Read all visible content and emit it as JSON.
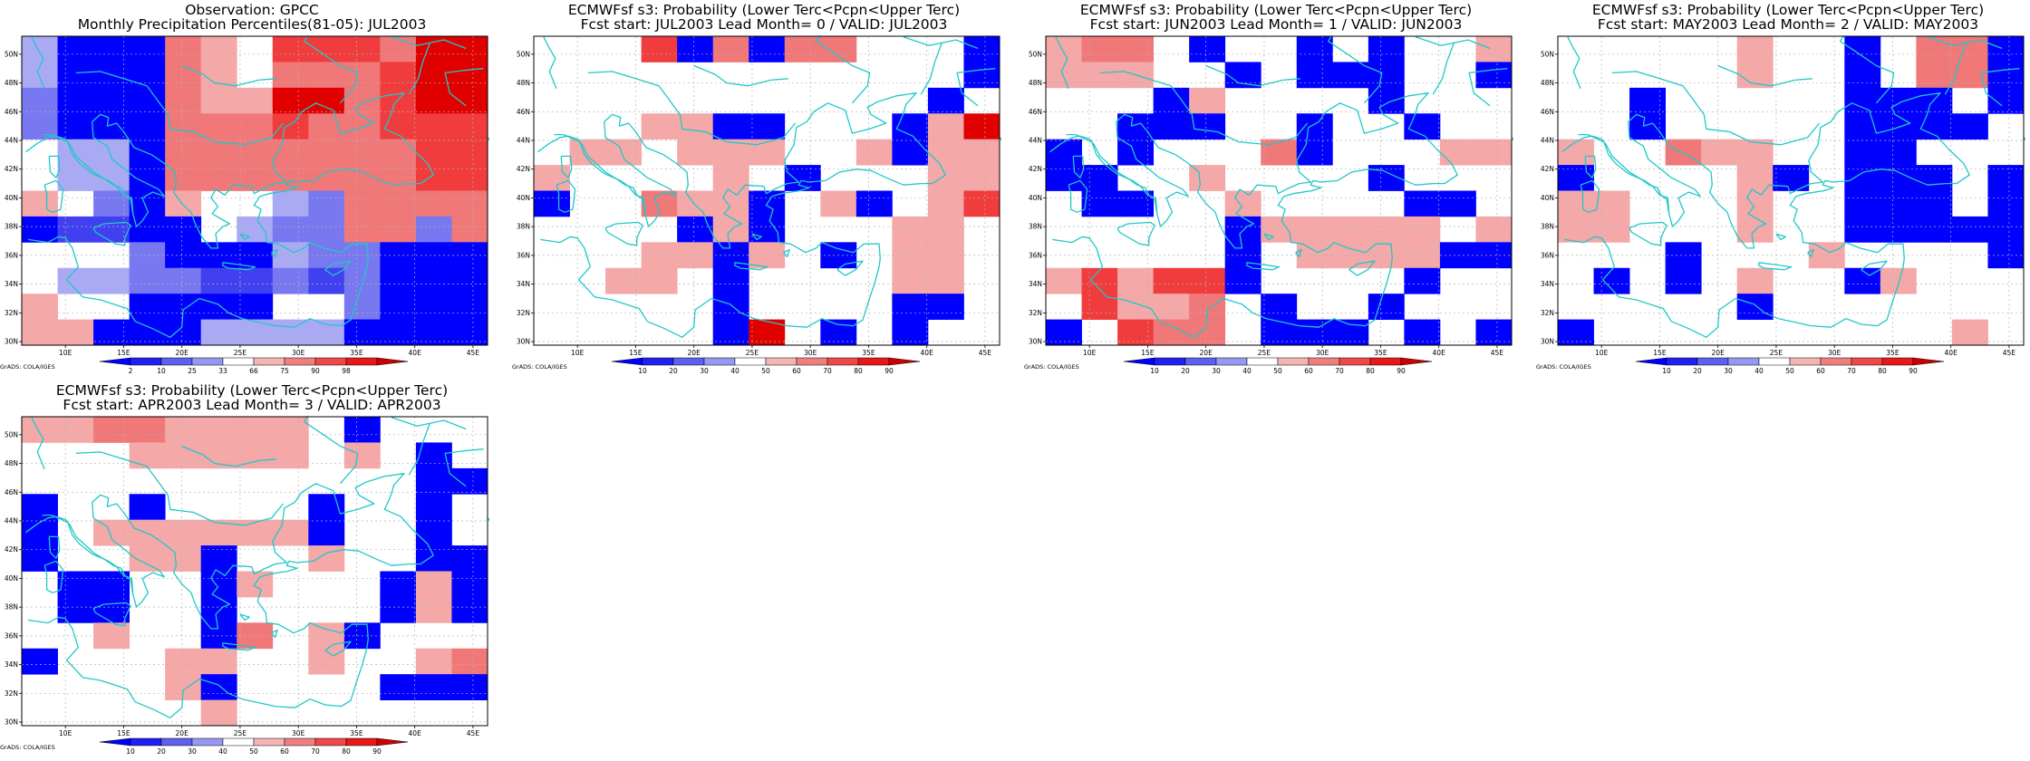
{
  "credit": "GrADS: COLA/IGES",
  "x_ticks": [
    "10E",
    "15E",
    "20E",
    "25E",
    "30E",
    "35E",
    "40E",
    "45E"
  ],
  "y_ticks": [
    "50N",
    "48N",
    "46N",
    "44N",
    "42N",
    "40N",
    "38N",
    "36N",
    "34N",
    "32N",
    "30N"
  ],
  "colors": {
    "coast": "#20c8c8",
    "scale": [
      "#0000ff",
      "#4040f0",
      "#7878f0",
      "#aaaaf4",
      "#ffffff",
      "#f4a8a8",
      "#f07878",
      "#f03c3c",
      "#e00000"
    ]
  },
  "panels": [
    {
      "title1": "Observation: GPCC",
      "title2": "Monthly Precipitation Percentiles(81-05): JUL2003",
      "colorbar_labels": [
        "2",
        "10",
        "25",
        "33",
        "66",
        "75",
        "90",
        "98"
      ],
      "grid": [
        "3000654777688",
        "3000654666788",
        "2000655886788",
        "2000666766777",
        "4330666666677",
        "4330666666677",
        "5420544326666",
        "0110043226626",
        "4442000322000",
        "4332211212000",
        "5440000442000",
        "5500033330000"
      ]
    },
    {
      "title1": "ECMWFsf s3: Probability (Lower Terc<Pcpn<Upper Terc)",
      "title2": "Fcst start: JUL2003   Lead Month= 0 / VALID: JUL2003",
      "colorbar_labels": [
        "10",
        "20",
        "30",
        "40",
        "50",
        "60",
        "70",
        "80",
        "90"
      ],
      "grid": [
        "4447060664440",
        "4444444444440",
        "4444444444404",
        "4445500444058",
        "4554555445055",
        "5444454044455",
        "0446550450457",
        "4444050444554",
        "4445505404554",
        "4455404444554",
        "4444404444004",
        "4444408404044"
      ]
    },
    {
      "title1": "ECMWFsf s3: Probability (Lower Terc<Pcpn<Upper Terc)",
      "title2": "Fcst start: JUN2003   Lead Month= 1 / VALID: JUN2003",
      "colorbar_labels": [
        "10",
        "20",
        "30",
        "40",
        "50",
        "60",
        "70",
        "80",
        "90"
      ],
      "grid": [
        "5664044040445",
        "5554404000440",
        "4440544440444",
        "4400044044044",
        "0404446044455",
        "0044544440444",
        "4004454444004",
        "4444405555545",
        "4444404555500",
        "5757704444044",
        "4755640440444",
        "0476640004040"
      ]
    },
    {
      "title1": "ECMWFsf s3: Probability (Lower Terc<Pcpn<Upper Terc)",
      "title2": "Fcst start: MAY2003   Lead Month= 2 / VALID: MAY2003",
      "colorbar_labels": [
        "10",
        "20",
        "30",
        "40",
        "50",
        "60",
        "70",
        "80",
        "90"
      ],
      "grid": [
        "4444454404660",
        "4444454404660",
        "4404444400040",
        "4404444400004",
        "5446554400444",
        "0444450400040",
        "5544454400040",
        "5544454400000",
        "4440444544440",
        "4040454405444",
        "4444404444444",
        "0444444444454"
      ]
    },
    {
      "title1": "ECMWFsf s3: Probability (Lower Terc<Pcpn<Upper Terc)",
      "title2": "Fcst start: APR2003   Lead Month= 3 / VALID: APR2003",
      "colorbar_labels": [
        "10",
        "20",
        "30",
        "40",
        "50",
        "60",
        "70",
        "80",
        "90"
      ],
      "grid": [
        "5566555540444",
        "4445555545404",
        "4444444444400",
        "0440444404404",
        "0455555504404",
        "0445504454400",
        "4004405444050",
        "4004404444050",
        "4454406450444",
        "0444554454456",
        "4444504444000",
        "4444454444444"
      ]
    }
  ]
}
